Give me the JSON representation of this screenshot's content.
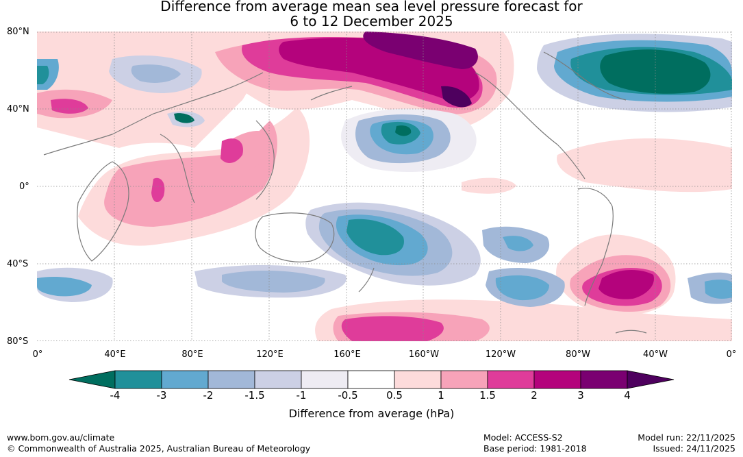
{
  "title": {
    "line1": "Difference from average mean sea level pressure forecast for",
    "line2": "6 to 12 December 2025"
  },
  "latitude_labels": [
    "80°N",
    "40°N",
    "0°",
    "40°S",
    "80°S"
  ],
  "longitude_labels": [
    "0°",
    "40°E",
    "80°E",
    "120°E",
    "160°E",
    "160°W",
    "120°W",
    "80°W",
    "40°W",
    "0°"
  ],
  "legend": {
    "title": "Difference from average (hPa)",
    "ticks": [
      "-4",
      "-3",
      "-2",
      "-1.5",
      "-1",
      "-0.5",
      "0.5",
      "1",
      "1.5",
      "2",
      "3",
      "4"
    ],
    "colors": [
      "#006e5f",
      "#20909a",
      "#62a9d0",
      "#a2b8d8",
      "#ccd0e5",
      "#eeecf3",
      "#ffffff",
      "#fddbdb",
      "#f7a3b9",
      "#df3c9a",
      "#b4037c",
      "#7a0071",
      "#4e005e"
    ]
  },
  "footer": {
    "website": "www.bom.gov.au/climate",
    "copyright": "© Commonwealth of Australia 2025, Australian Bureau of Meteorology",
    "model": "Model: ACCESS-S2",
    "base_period": "Base period: 1981-2018",
    "model_run": "Model run: 22/11/2025",
    "issued": "Issued: 24/11/2025"
  }
}
